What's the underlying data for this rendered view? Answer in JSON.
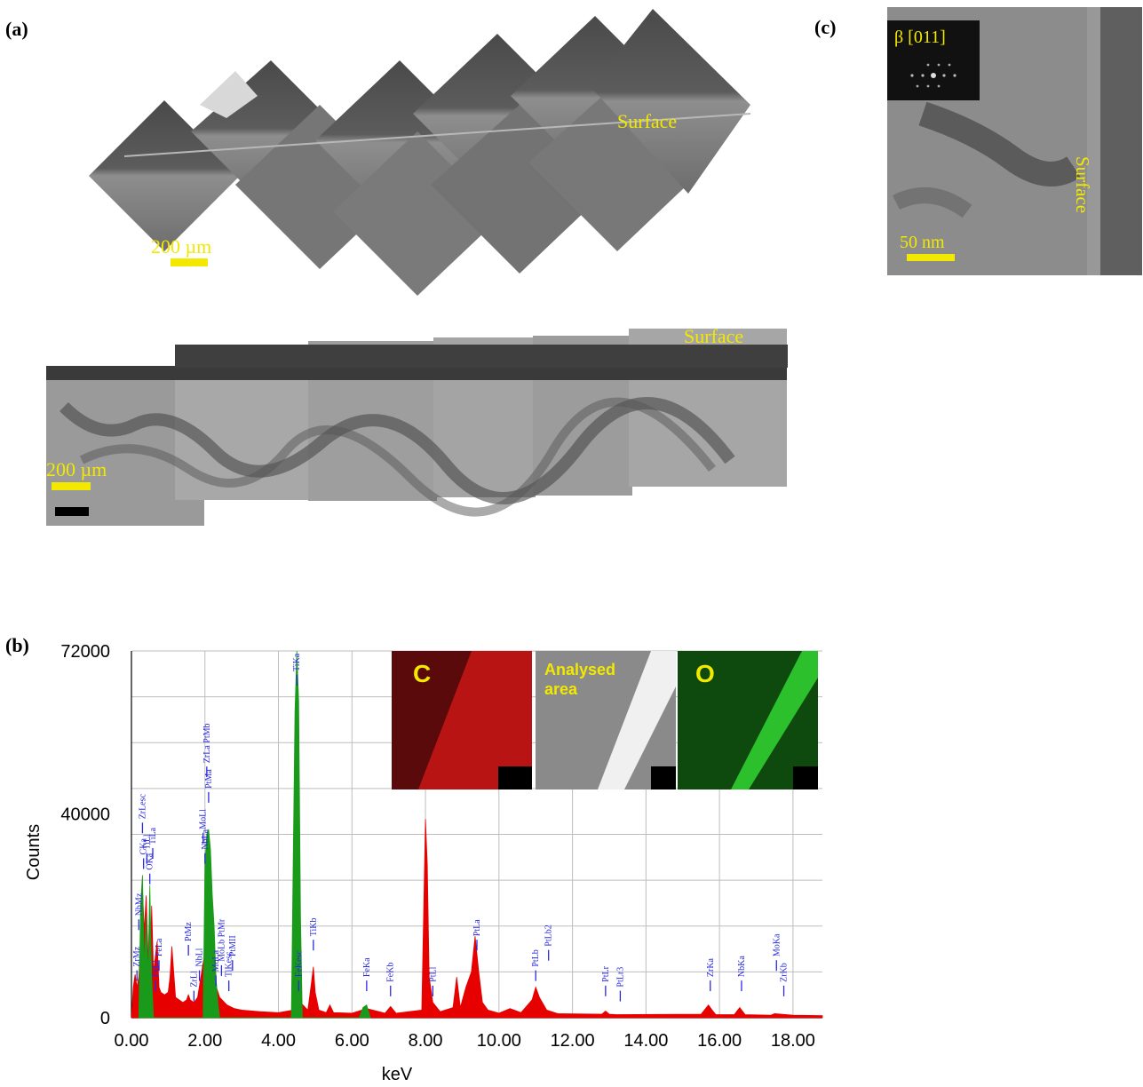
{
  "panels": {
    "a": {
      "label": "(a)",
      "top_image": {
        "surface_label": "Surface",
        "scale_label": "200 µm"
      },
      "bottom_image": {
        "surface_label": "Surface",
        "scale_label": "200 µm"
      }
    },
    "b": {
      "label": "(b)",
      "insets": [
        {
          "label": "C",
          "color": "#c81a1a"
        },
        {
          "label": "Analysed area",
          "color": "#9a9a9a"
        },
        {
          "label": "O",
          "color": "#1aa81a"
        }
      ]
    },
    "c": {
      "label": "(c)",
      "diffraction_label": "β [011]",
      "surface_label": "Surface",
      "scale_label": "50 nm"
    }
  },
  "colors": {
    "annotation_yellow": "#f2e800",
    "red_spectrum": "#e60000",
    "green_spectrum": "#1a9a1a",
    "peak_label_blue": "#2a2ae0"
  },
  "chart_data": {
    "type": "area",
    "xlabel": "keV",
    "ylabel": "Counts",
    "xlim": [
      0,
      18.8
    ],
    "ylim": [
      0,
      72000
    ],
    "x_ticks": [
      "0.00",
      "2.00",
      "4.00",
      "6.00",
      "8.00",
      "10.00",
      "12.00",
      "14.00",
      "16.00",
      "18.00"
    ],
    "y_ticks": [
      "0",
      "40000",
      "72000"
    ],
    "grid": true,
    "series": [
      {
        "color": "#e60000",
        "x": [
          0.0,
          0.05,
          0.1,
          0.15,
          0.2,
          0.25,
          0.3,
          0.35,
          0.4,
          0.45,
          0.5,
          0.55,
          0.6,
          0.7,
          0.75,
          0.8,
          0.9,
          1.0,
          1.05,
          1.1,
          1.15,
          1.2,
          1.4,
          1.5,
          1.55,
          1.6,
          1.7,
          1.8,
          2.0,
          2.4,
          2.6,
          2.8,
          3.0,
          3.5,
          4.0,
          4.4,
          4.5,
          4.55,
          4.6,
          4.8,
          4.9,
          4.95,
          5.0,
          5.1,
          5.3,
          5.4,
          5.5,
          6.0,
          6.4,
          6.9,
          7.05,
          7.2,
          7.9,
          8.0,
          8.05,
          8.1,
          8.2,
          8.4,
          8.75,
          8.85,
          8.95,
          9.1,
          9.25,
          9.35,
          9.45,
          9.55,
          9.7,
          10.0,
          10.3,
          10.6,
          10.9,
          11.0,
          11.1,
          11.3,
          11.6,
          12.8,
          12.9,
          13.0,
          13.2,
          15.5,
          15.7,
          15.8,
          15.9,
          16.4,
          16.55,
          16.7,
          17.4,
          17.5,
          18.0,
          18.8
        ],
        "y": [
          0,
          6000,
          8500,
          6000,
          8000,
          14000,
          25000,
          17000,
          24000,
          13000,
          6000,
          22000,
          9000,
          15000,
          6000,
          5000,
          4500,
          5000,
          8000,
          14000,
          9000,
          4000,
          3000,
          3500,
          4500,
          3500,
          3000,
          4000,
          13000,
          4000,
          2500,
          1800,
          1500,
          1200,
          1000,
          1500,
          70000,
          55000,
          3000,
          1500,
          7000,
          10000,
          5000,
          1500,
          1000,
          2500,
          1000,
          900,
          1800,
          900,
          2200,
          900,
          1500,
          39000,
          30000,
          8000,
          3000,
          1200,
          2000,
          8000,
          2000,
          6000,
          9000,
          16000,
          9000,
          3000,
          1500,
          900,
          1800,
          1000,
          3500,
          6000,
          4000,
          1500,
          800,
          700,
          1300,
          700,
          600,
          700,
          2500,
          1500,
          600,
          600,
          2000,
          600,
          500,
          800,
          500,
          400
        ]
      },
      {
        "color": "#1a9a1a",
        "x": [
          0.2,
          0.25,
          0.3,
          0.35,
          0.4,
          0.45,
          0.5,
          0.55,
          0.6,
          1.95,
          2.0,
          2.05,
          2.1,
          2.15,
          2.2,
          2.25,
          2.3,
          2.35,
          2.4,
          4.35,
          4.4,
          4.45,
          4.5,
          4.55,
          4.6,
          4.65,
          6.2,
          6.3,
          6.4,
          6.5
        ],
        "y": [
          0,
          22000,
          28000,
          10000,
          20000,
          8000,
          26000,
          8000,
          0,
          0,
          30000,
          36000,
          37000,
          33000,
          24000,
          18000,
          8000,
          3000,
          0,
          0,
          30000,
          60000,
          72000,
          62000,
          20000,
          0,
          0,
          2000,
          2500,
          0
        ]
      }
    ],
    "peak_labels": [
      {
        "text": "ZrMz",
        "x": 0.15,
        "y": 10000
      },
      {
        "text": "NbMz",
        "x": 0.2,
        "y": 20000
      },
      {
        "text": "ZrLesc",
        "x": 0.3,
        "y": 39000
      },
      {
        "text": "CKa",
        "x": 0.33,
        "y": 32000
      },
      {
        "text": "TiLl",
        "x": 0.42,
        "y": 33000
      },
      {
        "text": "OKa",
        "x": 0.5,
        "y": 29000
      },
      {
        "text": "TiLa",
        "x": 0.58,
        "y": 34000
      },
      {
        "text": "FeLl",
        "x": 0.65,
        "y": 8000
      },
      {
        "text": "FeLa",
        "x": 0.75,
        "y": 12000
      },
      {
        "text": "PtMz",
        "x": 1.55,
        "y": 15000
      },
      {
        "text": "ZrLl",
        "x": 1.7,
        "y": 6000
      },
      {
        "text": "NbLl",
        "x": 1.85,
        "y": 10000
      },
      {
        "text": "MoLl",
        "x": 1.95,
        "y": 37000
      },
      {
        "text": "NbLa",
        "x": 2.0,
        "y": 33000
      },
      {
        "text": "ZrLa PtMb",
        "x": 2.05,
        "y": 50000
      },
      {
        "text": "PtMa",
        "x": 2.1,
        "y": 45000
      },
      {
        "text": "MoLa",
        "x": 2.3,
        "y": 9000
      },
      {
        "text": "MoLb PtMr",
        "x": 2.45,
        "y": 11000
      },
      {
        "text": "PtMII",
        "x": 2.75,
        "y": 12000
      },
      {
        "text": "TiKesc",
        "x": 2.65,
        "y": 8000
      },
      {
        "text": "TiKa",
        "x": 4.5,
        "y": 68000
      },
      {
        "text": "FeKesc",
        "x": 4.55,
        "y": 8000
      },
      {
        "text": "TiKb",
        "x": 4.95,
        "y": 16000
      },
      {
        "text": "FeKa",
        "x": 6.4,
        "y": 8000
      },
      {
        "text": "FeKb",
        "x": 7.05,
        "y": 7000
      },
      {
        "text": "PtLl",
        "x": 8.2,
        "y": 7000
      },
      {
        "text": "PtLa",
        "x": 9.4,
        "y": 16000
      },
      {
        "text": "PtLb",
        "x": 11.0,
        "y": 10000
      },
      {
        "text": "PtLb2",
        "x": 11.35,
        "y": 14000
      },
      {
        "text": "PtLr",
        "x": 12.9,
        "y": 7000
      },
      {
        "text": "PtLr3",
        "x": 13.3,
        "y": 6000
      },
      {
        "text": "ZrKa",
        "x": 15.75,
        "y": 8000
      },
      {
        "text": "NbKa",
        "x": 16.6,
        "y": 8000
      },
      {
        "text": "MoKa",
        "x": 17.55,
        "y": 12000
      },
      {
        "text": "ZrKb",
        "x": 17.75,
        "y": 7000
      }
    ]
  }
}
